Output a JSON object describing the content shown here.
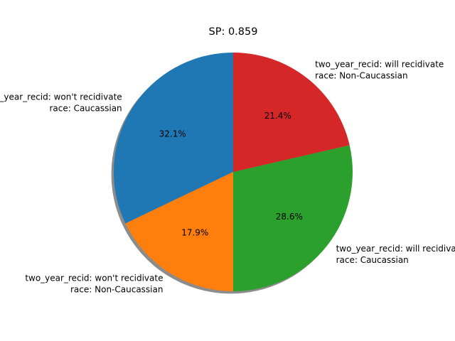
{
  "chart_data": {
    "type": "pie",
    "title": "SP: 0.859",
    "shadow": true,
    "start_angle_deg": 90,
    "direction": "counterclockwise",
    "slices": [
      {
        "label_line1": "two_year_recid: won't recidivate",
        "label_line2": "race: Caucassian",
        "value": 32.1,
        "pct_label": "32.1%",
        "color": "#1f77b4"
      },
      {
        "label_line1": "two_year_recid: won't recidivate",
        "label_line2": "race: Non-Caucassian",
        "value": 17.9,
        "pct_label": "17.9%",
        "color": "#ff7f0e"
      },
      {
        "label_line1": "two_year_recid: will recidivate",
        "label_line2": "race: Caucassian",
        "value": 28.6,
        "pct_label": "28.6%",
        "color": "#2ca02c"
      },
      {
        "label_line1": "two_year_recid: will recidivate",
        "label_line2": "race: Non-Caucassian",
        "value": 21.4,
        "pct_label": "21.4%",
        "color": "#d62728"
      }
    ]
  }
}
